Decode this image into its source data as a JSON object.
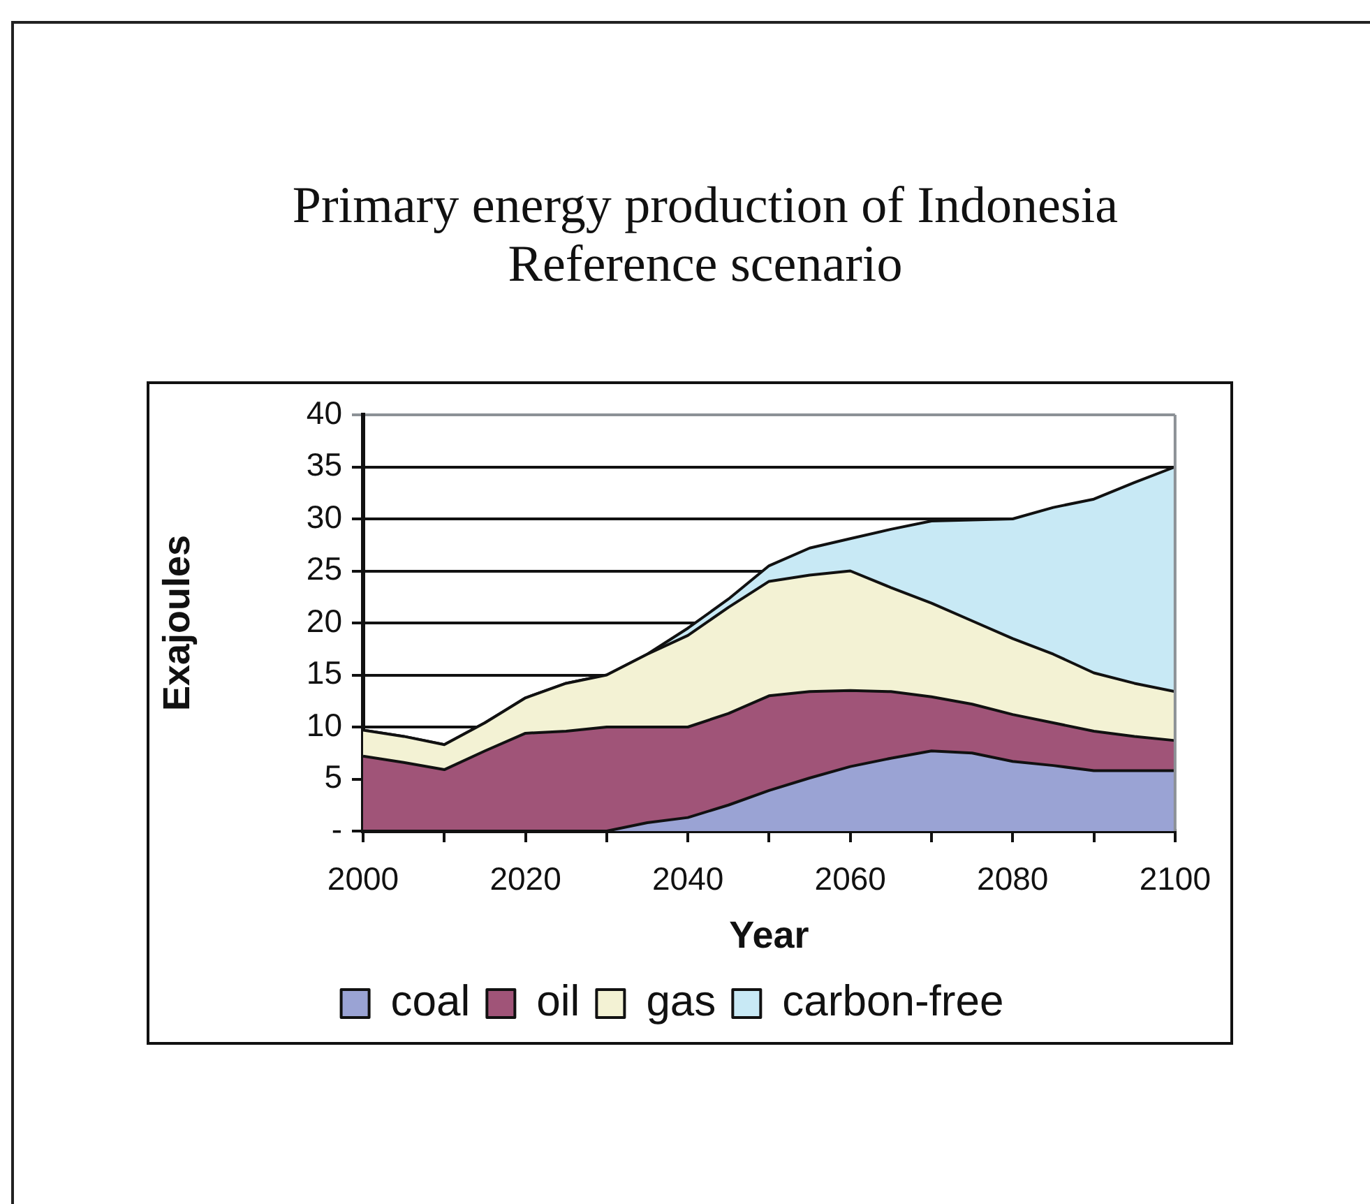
{
  "chart_data": {
    "type": "area",
    "title": "Primary energy production of Indonesia",
    "subtitle": "Reference scenario",
    "xlabel": "Year",
    "ylabel": "Exajoules",
    "x": [
      2000,
      2005,
      2010,
      2015,
      2020,
      2025,
      2030,
      2035,
      2040,
      2045,
      2050,
      2055,
      2060,
      2065,
      2070,
      2075,
      2080,
      2085,
      2090,
      2095,
      2100
    ],
    "series": [
      {
        "name": "coal",
        "color": "#9aa3d4",
        "values": [
          0,
          0,
          0,
          0,
          0,
          0,
          0,
          0.8,
          1.3,
          2.5,
          3.9,
          5.1,
          6.2,
          7.0,
          7.7,
          7.5,
          6.7,
          6.3,
          5.8,
          5.8,
          5.8
        ]
      },
      {
        "name": "oil",
        "color": "#a05478",
        "values": [
          7.2,
          6.6,
          5.9,
          7.7,
          9.4,
          9.6,
          10.0,
          9.2,
          8.7,
          8.8,
          9.1,
          8.3,
          7.3,
          6.4,
          5.2,
          4.7,
          4.5,
          4.1,
          3.8,
          3.3,
          2.9
        ]
      },
      {
        "name": "gas",
        "color": "#f3f2d4",
        "values": [
          2.5,
          2.5,
          2.4,
          2.7,
          3.4,
          4.6,
          5.0,
          7.0,
          8.8,
          10.2,
          11.0,
          11.2,
          11.5,
          10.0,
          9.0,
          8.0,
          7.3,
          6.6,
          5.6,
          5.1,
          4.7
        ]
      },
      {
        "name": "carbon-free",
        "color": "#c8e9f5",
        "values": [
          0,
          0,
          0,
          0,
          0,
          0,
          0,
          0,
          0.7,
          0.8,
          1.5,
          2.6,
          3.1,
          5.6,
          7.9,
          9.7,
          11.5,
          14.1,
          16.7,
          19.3,
          21.6
        ]
      }
    ],
    "stacked": true,
    "xlim": [
      2000,
      2100
    ],
    "xticks": [
      2000,
      {
        "value": 2010,
        "label": null
      },
      2020,
      {
        "value": 2030,
        "label": null
      },
      2040,
      {
        "value": 2050,
        "label": null
      },
      2060,
      {
        "value": 2070,
        "label": null
      },
      2080,
      {
        "value": 2090,
        "label": null
      },
      2100
    ],
    "ylim": [
      0,
      40
    ],
    "yticks": [
      {
        "value": 0,
        "label": "-"
      },
      5,
      10,
      15,
      20,
      25,
      30,
      35,
      40
    ],
    "grid": "y",
    "legend": "bottom"
  }
}
